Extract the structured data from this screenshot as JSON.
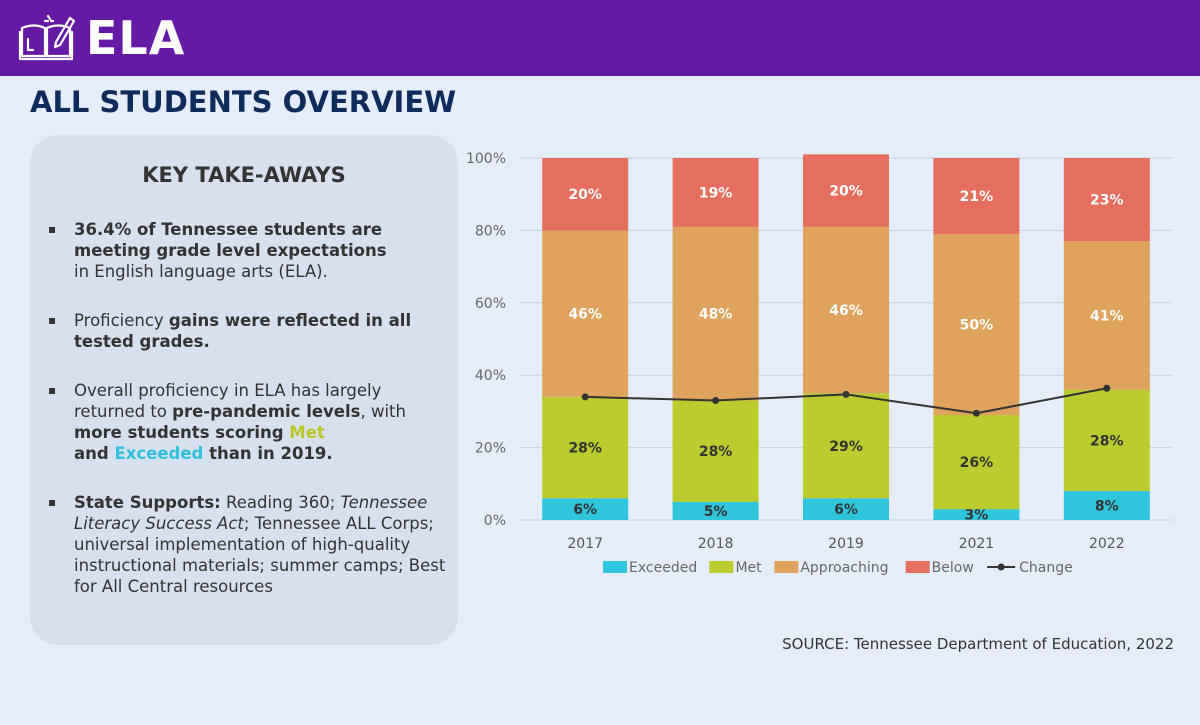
{
  "header": {
    "title": "ELA",
    "icon": "book-pencil-icon"
  },
  "page_title": "ALL STUDENTS OVERVIEW",
  "takeaways": {
    "title": "KEY TAKE-AWAYS",
    "bullet_mark": "▪",
    "items": [
      {
        "strong": "36.4% of Tennessee students are meeting grade level expectations",
        "rest": "in English language arts (ELA)."
      },
      {
        "pre": "Proficiency ",
        "strong": "gains were reflected in all tested grades."
      },
      {
        "pre": "Overall proficiency in ELA has largely returned to ",
        "strong1": "pre-pandemic levels",
        "mid": ", with ",
        "strong2": "more students scoring ",
        "met": "Met",
        "and": "and ",
        "exceeded": "Exceeded",
        "end": " than in 2019."
      },
      {
        "strong": "State Supports:",
        "t1": " Reading 360; ",
        "i1": "Tennessee Literacy Success Act",
        "t2": ";  Tennessee ALL Corps; universal implementation of high-quality instructional materials; summer camps; Best for All Central resources"
      }
    ]
  },
  "source": "SOURCE: Tennessee Department of Education, 2022",
  "chart_data": {
    "type": "bar",
    "stacked": true,
    "categories": [
      "2017",
      "2018",
      "2019",
      "2021",
      "2022"
    ],
    "series": [
      {
        "name": "Exceeded",
        "color": "#2fc5dc",
        "values": [
          6,
          5,
          6,
          3,
          8
        ],
        "labels": [
          "6%",
          "5%",
          "6%",
          "3%",
          "8%"
        ]
      },
      {
        "name": "Met",
        "color": "#bccb2d",
        "values": [
          28,
          28,
          29,
          26,
          28
        ],
        "labels": [
          "28%",
          "28%",
          "29%",
          "26%",
          "28%"
        ]
      },
      {
        "name": "Approaching",
        "color": "#e0a35e",
        "values": [
          46,
          48,
          46,
          50,
          41
        ],
        "labels": [
          "46%",
          "48%",
          "46%",
          "50%",
          "41%"
        ]
      },
      {
        "name": "Below",
        "color": "#e66e5e",
        "values": [
          20,
          19,
          20,
          21,
          23
        ],
        "labels": [
          "20%",
          "19%",
          "20%",
          "21%",
          "23%"
        ]
      }
    ],
    "line": {
      "name": "Change",
      "color": "#333333",
      "values": [
        34,
        33,
        34.7,
        29.5,
        36.4
      ]
    },
    "ylim": [
      0,
      100
    ],
    "yticks": [
      "0%",
      "20%",
      "40%",
      "60%",
      "80%",
      "100%"
    ],
    "ytick_values": [
      0,
      20,
      40,
      60,
      80,
      100
    ],
    "legend": "bottom",
    "grid": true
  }
}
